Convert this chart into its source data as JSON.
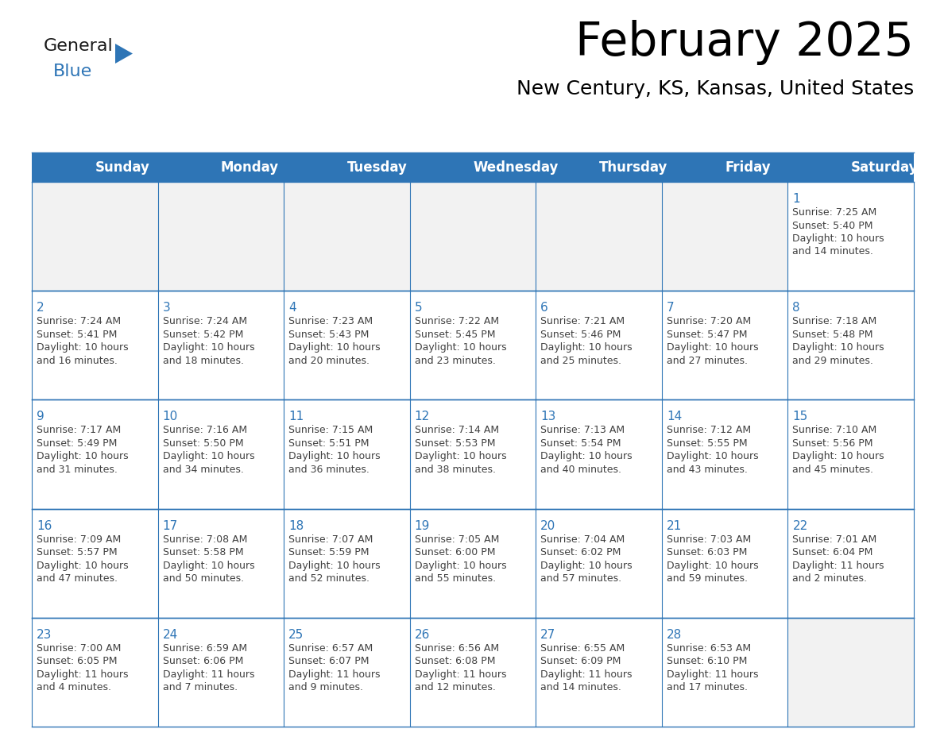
{
  "title": "February 2025",
  "subtitle": "New Century, KS, Kansas, United States",
  "header_bg": "#2E75B6",
  "header_text_color": "#FFFFFF",
  "cell_bg": "#FFFFFF",
  "empty_row_bg": "#F2F2F2",
  "cell_border_color": "#2E75B6",
  "day_number_color": "#2E75B6",
  "info_text_color": "#404040",
  "background_color": "#FFFFFF",
  "days_of_week": [
    "Sunday",
    "Monday",
    "Tuesday",
    "Wednesday",
    "Thursday",
    "Friday",
    "Saturday"
  ],
  "weeks": [
    [
      {
        "day": null,
        "info": null
      },
      {
        "day": null,
        "info": null
      },
      {
        "day": null,
        "info": null
      },
      {
        "day": null,
        "info": null
      },
      {
        "day": null,
        "info": null
      },
      {
        "day": null,
        "info": null
      },
      {
        "day": 1,
        "info": "Sunrise: 7:25 AM\nSunset: 5:40 PM\nDaylight: 10 hours\nand 14 minutes."
      }
    ],
    [
      {
        "day": 2,
        "info": "Sunrise: 7:24 AM\nSunset: 5:41 PM\nDaylight: 10 hours\nand 16 minutes."
      },
      {
        "day": 3,
        "info": "Sunrise: 7:24 AM\nSunset: 5:42 PM\nDaylight: 10 hours\nand 18 minutes."
      },
      {
        "day": 4,
        "info": "Sunrise: 7:23 AM\nSunset: 5:43 PM\nDaylight: 10 hours\nand 20 minutes."
      },
      {
        "day": 5,
        "info": "Sunrise: 7:22 AM\nSunset: 5:45 PM\nDaylight: 10 hours\nand 23 minutes."
      },
      {
        "day": 6,
        "info": "Sunrise: 7:21 AM\nSunset: 5:46 PM\nDaylight: 10 hours\nand 25 minutes."
      },
      {
        "day": 7,
        "info": "Sunrise: 7:20 AM\nSunset: 5:47 PM\nDaylight: 10 hours\nand 27 minutes."
      },
      {
        "day": 8,
        "info": "Sunrise: 7:18 AM\nSunset: 5:48 PM\nDaylight: 10 hours\nand 29 minutes."
      }
    ],
    [
      {
        "day": 9,
        "info": "Sunrise: 7:17 AM\nSunset: 5:49 PM\nDaylight: 10 hours\nand 31 minutes."
      },
      {
        "day": 10,
        "info": "Sunrise: 7:16 AM\nSunset: 5:50 PM\nDaylight: 10 hours\nand 34 minutes."
      },
      {
        "day": 11,
        "info": "Sunrise: 7:15 AM\nSunset: 5:51 PM\nDaylight: 10 hours\nand 36 minutes."
      },
      {
        "day": 12,
        "info": "Sunrise: 7:14 AM\nSunset: 5:53 PM\nDaylight: 10 hours\nand 38 minutes."
      },
      {
        "day": 13,
        "info": "Sunrise: 7:13 AM\nSunset: 5:54 PM\nDaylight: 10 hours\nand 40 minutes."
      },
      {
        "day": 14,
        "info": "Sunrise: 7:12 AM\nSunset: 5:55 PM\nDaylight: 10 hours\nand 43 minutes."
      },
      {
        "day": 15,
        "info": "Sunrise: 7:10 AM\nSunset: 5:56 PM\nDaylight: 10 hours\nand 45 minutes."
      }
    ],
    [
      {
        "day": 16,
        "info": "Sunrise: 7:09 AM\nSunset: 5:57 PM\nDaylight: 10 hours\nand 47 minutes."
      },
      {
        "day": 17,
        "info": "Sunrise: 7:08 AM\nSunset: 5:58 PM\nDaylight: 10 hours\nand 50 minutes."
      },
      {
        "day": 18,
        "info": "Sunrise: 7:07 AM\nSunset: 5:59 PM\nDaylight: 10 hours\nand 52 minutes."
      },
      {
        "day": 19,
        "info": "Sunrise: 7:05 AM\nSunset: 6:00 PM\nDaylight: 10 hours\nand 55 minutes."
      },
      {
        "day": 20,
        "info": "Sunrise: 7:04 AM\nSunset: 6:02 PM\nDaylight: 10 hours\nand 57 minutes."
      },
      {
        "day": 21,
        "info": "Sunrise: 7:03 AM\nSunset: 6:03 PM\nDaylight: 10 hours\nand 59 minutes."
      },
      {
        "day": 22,
        "info": "Sunrise: 7:01 AM\nSunset: 6:04 PM\nDaylight: 11 hours\nand 2 minutes."
      }
    ],
    [
      {
        "day": 23,
        "info": "Sunrise: 7:00 AM\nSunset: 6:05 PM\nDaylight: 11 hours\nand 4 minutes."
      },
      {
        "day": 24,
        "info": "Sunrise: 6:59 AM\nSunset: 6:06 PM\nDaylight: 11 hours\nand 7 minutes."
      },
      {
        "day": 25,
        "info": "Sunrise: 6:57 AM\nSunset: 6:07 PM\nDaylight: 11 hours\nand 9 minutes."
      },
      {
        "day": 26,
        "info": "Sunrise: 6:56 AM\nSunset: 6:08 PM\nDaylight: 11 hours\nand 12 minutes."
      },
      {
        "day": 27,
        "info": "Sunrise: 6:55 AM\nSunset: 6:09 PM\nDaylight: 11 hours\nand 14 minutes."
      },
      {
        "day": 28,
        "info": "Sunrise: 6:53 AM\nSunset: 6:10 PM\nDaylight: 11 hours\nand 17 minutes."
      },
      {
        "day": null,
        "info": null
      }
    ]
  ],
  "logo_general_color": "#1a1a1a",
  "logo_blue_color": "#2E75B6",
  "logo_triangle_color": "#2E75B6",
  "title_fontsize": 42,
  "subtitle_fontsize": 18,
  "header_fontsize": 12,
  "day_num_fontsize": 11,
  "info_fontsize": 9
}
